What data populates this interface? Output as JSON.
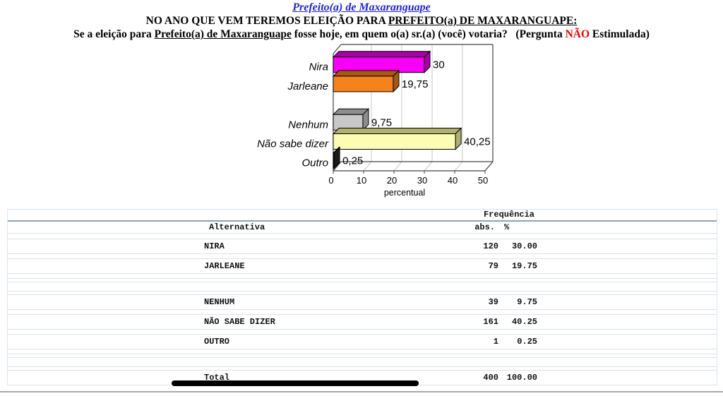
{
  "header": {
    "title": "Prefeito(a) de Maxaranguape",
    "line2_prefix": "NO ANO QUE VEM TEREMOS ELEIÇÃO PARA ",
    "line2_underlined": "PREFEITO(a) DE MAXARANGUAPE:",
    "line3_part1": "Se a eleição para ",
    "line3_underlined": "Prefeito(a) de Maxaranguape",
    "line3_part2": " fosse hoje, em quem o(a) sr.(a) (você) votaria?   (Pergunta ",
    "line3_red": "NÃO",
    "line3_part3": " Estimulada)"
  },
  "chart_data": {
    "type": "bar",
    "orientation": "horizontal",
    "style": "3d-horizontal-bar",
    "title": "",
    "categories": [
      "Nira",
      "Jarleane",
      "",
      "Nenhum",
      "Não sabe dizer",
      "Outro"
    ],
    "values": [
      30,
      19.75,
      null,
      9.75,
      40.25,
      0.25
    ],
    "value_labels": [
      "30",
      "19,75",
      "",
      "9,75",
      "40,25",
      "0,25"
    ],
    "bar_colors": [
      "#f800f8",
      "#f6821e",
      "",
      "#c8c8c8",
      "#fcfcb4",
      "#000000"
    ],
    "bar_shade_colors": [
      "#a900a9",
      "#a85812",
      "",
      "#8e8e8e",
      "#b0b070",
      "#1a1a1a"
    ],
    "xlabel": "percentual",
    "x_ticks": [
      "0",
      "10",
      "20",
      "30",
      "40",
      "50"
    ],
    "xlim": [
      0,
      50
    ],
    "grid": true,
    "legend": "none"
  },
  "table": {
    "header_group": "Frequência",
    "columns": {
      "alternative": "Alternativa",
      "abs": "abs.",
      "pct": "%"
    },
    "rows": [
      {
        "label": "NIRA",
        "abs": "120",
        "pct": "30.00",
        "empty": false
      },
      {
        "label": "JARLEANE",
        "abs": "79",
        "pct": "19.75",
        "empty": false
      },
      {
        "label": "",
        "abs": "",
        "pct": "",
        "empty": true
      },
      {
        "label": "NENHUM",
        "abs": "39",
        "pct": "9.75",
        "empty": false
      },
      {
        "label": "NÃO SABE DIZER",
        "abs": "161",
        "pct": "40.25",
        "empty": false
      },
      {
        "label": "OUTRO",
        "abs": "1",
        "pct": "0.25",
        "empty": false
      },
      {
        "label": "",
        "abs": "",
        "pct": "",
        "empty": true
      },
      {
        "label": "Total",
        "abs": "400",
        "pct": "100.00",
        "empty": false
      }
    ]
  },
  "colors": {
    "title_link": "#2222dd",
    "highlight_red": "#ee0000",
    "table_rule_light": "#d8e2ec",
    "table_rule_dark": "#8ca3b8"
  }
}
